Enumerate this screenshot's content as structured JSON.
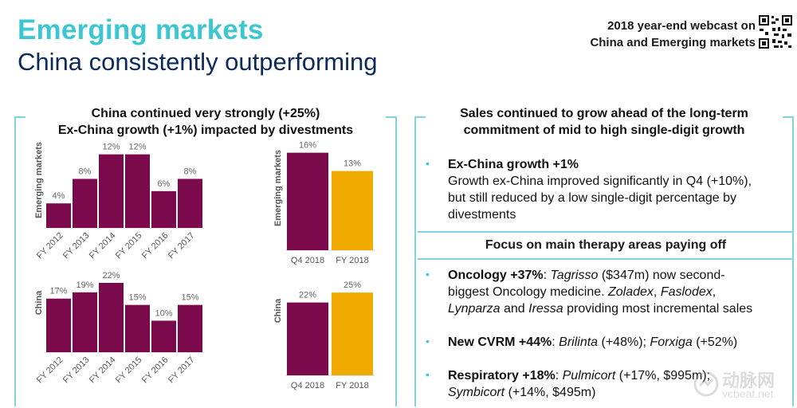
{
  "header": {
    "title": "Emerging markets",
    "subtitle": "China consistently outperforming",
    "webcast_line1": "2018 year-end webcast on",
    "webcast_line2": "China and Emerging markets"
  },
  "left_panel": {
    "heading_line1": "China continued very strongly (+25%)",
    "heading_line2": "Ex-China growth (+1%) impacted by divestments"
  },
  "colors": {
    "bar_primary": "#7a0a4b",
    "bar_highlight": "#f0aa00",
    "accent": "#3cc6d2",
    "panel_line": "#7fd4df",
    "title_navy": "#0b2a5b"
  },
  "chart_data": [
    {
      "type": "bar",
      "title": "",
      "ylabel": "Emerging markets",
      "categories": [
        "FY 2012",
        "FY 2013",
        "FY 2014",
        "FY 2015",
        "FY 2016",
        "FY 2017"
      ],
      "values": [
        4,
        8,
        12,
        12,
        6,
        8
      ],
      "labels": [
        "4%",
        "8%",
        "12%",
        "12%",
        "6%",
        "8%"
      ],
      "ylim": [
        0,
        13
      ]
    },
    {
      "type": "bar",
      "title": "",
      "ylabel": "Emerging markets",
      "categories": [
        "Q4 2018",
        "FY 2018"
      ],
      "values": [
        16,
        13
      ],
      "labels": [
        "16%",
        "13%"
      ],
      "ylim": [
        0,
        17
      ]
    },
    {
      "type": "bar",
      "title": "",
      "ylabel": "China",
      "categories": [
        "FY 2012",
        "FY 2013",
        "FY 2014",
        "FY 2015",
        "FY 2016",
        "FY 2017"
      ],
      "values": [
        17,
        19,
        22,
        15,
        10,
        15
      ],
      "labels": [
        "17%",
        "19%",
        "22%",
        "15%",
        "10%",
        "15%"
      ],
      "ylim": [
        0,
        23
      ]
    },
    {
      "type": "bar",
      "title": "",
      "ylabel": "China",
      "categories": [
        "Q4 2018",
        "FY 2018"
      ],
      "values": [
        22,
        25
      ],
      "labels": [
        "22%",
        "25%"
      ],
      "ylim": [
        0,
        26
      ]
    }
  ],
  "right_panel": {
    "heading_line1": "Sales continued to grow ahead of the long-term",
    "heading_line2": "commitment of mid to high single-digit growth",
    "bullet_mark": "•",
    "exchina_title": "Ex-China growth +1%",
    "exchina_line1": "Growth ex-China improved significantly in Q4 (+10%),",
    "exchina_line2": "but still reduced by a low single-digit percentage by",
    "exchina_line3": "divestments",
    "focus_band": "Focus on main therapy areas paying off",
    "onc_bold": "Oncology +37%",
    "onc_l1_a": ": ",
    "onc_l1_ital": "Tagrisso",
    "onc_l1_b": " ($347m) now second-",
    "onc_l2_a": "biggest Oncology medicine. ",
    "onc_l2_i1": "Zoladex",
    "onc_l2_b": ", ",
    "onc_l2_i2": "Faslodex",
    "onc_l2_c": ",",
    "onc_l3_i1": "Lynparza",
    "onc_l3_a": " and ",
    "onc_l3_i2": "Iressa",
    "onc_l3_b": " providing most incremental sales",
    "cvrm_bold": "New CVRM +44%",
    "cvrm_a": ": ",
    "cvrm_i1": "Brilinta",
    "cvrm_b": " (+48%); ",
    "cvrm_i2": "Forxiga",
    "cvrm_c": " (+52%)",
    "resp_bold": "Respiratory +18%",
    "resp_a": ": ",
    "resp_i1": "Pulmicort",
    "resp_b": " (+17%, $995m);",
    "resp_i2": "Symbicort",
    "resp_c": " (+14%, $495m)"
  },
  "watermark": {
    "name": "动脉网",
    "url": "vcbeat.net"
  }
}
